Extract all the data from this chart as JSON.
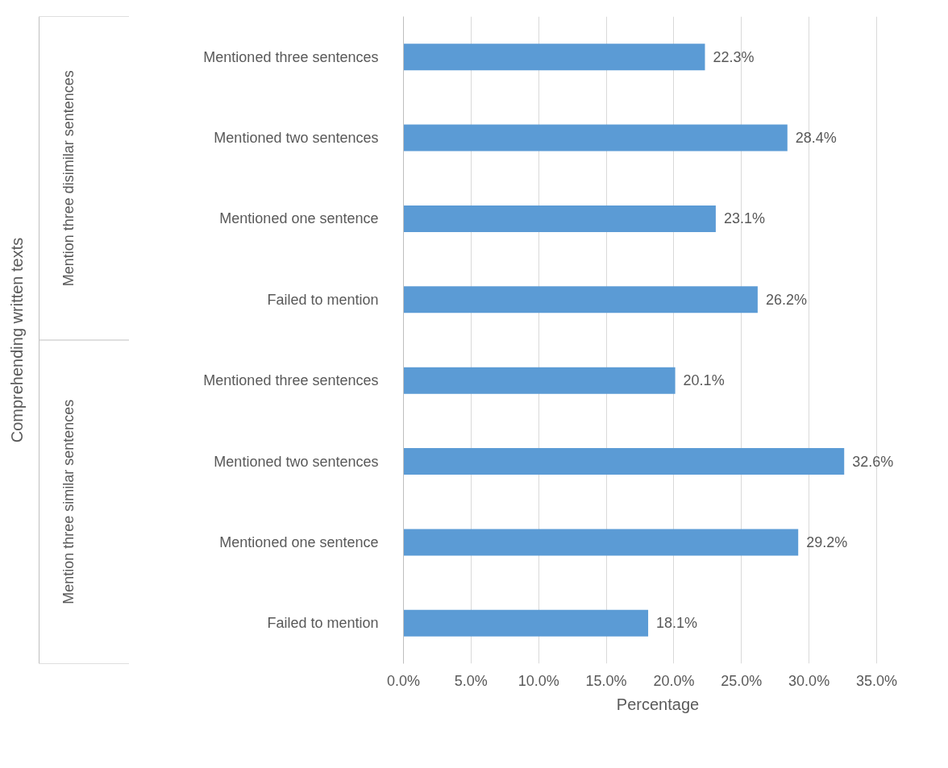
{
  "chart_data": {
    "type": "bar",
    "orientation": "horizontal",
    "xlabel": "Percentage",
    "annotations": [
      "Comprehending written texts",
      "Mention three disimilar sentences",
      "Mention three similar sentences"
    ],
    "categories": [
      "Mentioned three sentences",
      "Mentioned two sentences",
      "Mentioned one sentence",
      "Failed to mention",
      "Mentioned three sentences",
      "Mentioned two sentences",
      "Mentioned one sentence",
      "Failed to mention"
    ],
    "values": [
      22.3,
      28.4,
      23.1,
      26.2,
      20.1,
      32.6,
      29.2,
      18.1
    ],
    "value_labels": [
      "22.3%",
      "28.4%",
      "23.1%",
      "26.2%",
      "20.1%",
      "32.6%",
      "29.2%",
      "18.1%"
    ],
    "color": "#5b9bd5",
    "xlim": [
      0,
      35
    ],
    "xticks": [
      {
        "value": 0,
        "label": "0.0%"
      },
      {
        "value": 5,
        "label": "5.0%"
      },
      {
        "value": 10,
        "label": "10.0%"
      },
      {
        "value": 15,
        "label": "15.0%"
      },
      {
        "value": 20,
        "label": "20.0%"
      },
      {
        "value": 25,
        "label": "25.0%"
      },
      {
        "value": 30,
        "label": "30.0%"
      },
      {
        "value": 35,
        "label": "35.0%"
      }
    ],
    "grid": "x"
  }
}
